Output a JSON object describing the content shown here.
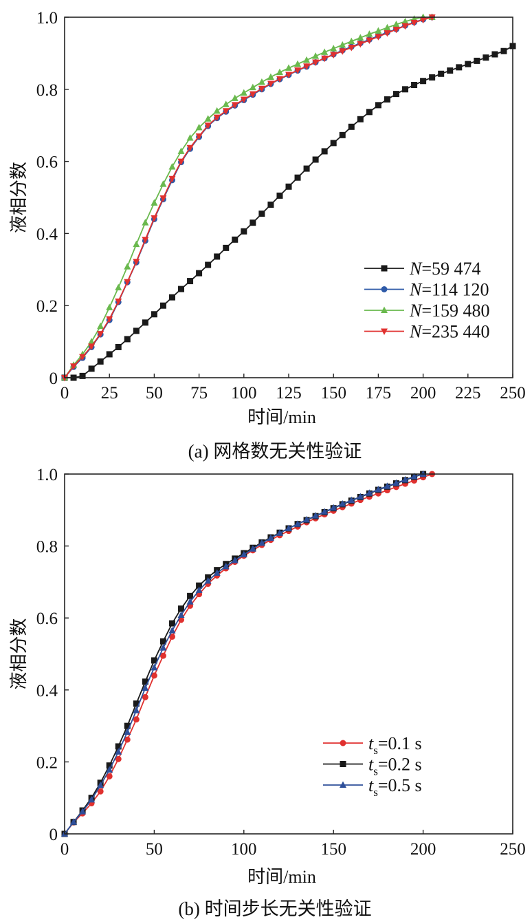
{
  "chart_data": [
    {
      "type": "line",
      "caption": "(a) 网格数无关性验证",
      "xlabel": "时间/min",
      "ylabel": "液相分数",
      "xlim": [
        0,
        250
      ],
      "ylim": [
        0,
        1.0
      ],
      "x_ticks": [
        "0",
        "25",
        "50",
        "75",
        "100",
        "125",
        "150",
        "175",
        "200",
        "225",
        "250"
      ],
      "y_ticks": [
        "0",
        "0.2",
        "0.4",
        "0.6",
        "0.8",
        "1.0"
      ],
      "grid": false,
      "legend_position": "bottom-right",
      "series": [
        {
          "name": "N=59 474",
          "legend_italic": "N",
          "legend_rest": "=59 474",
          "color": "#1a1a1a",
          "marker": "square",
          "x": [
            0,
            5,
            10,
            15,
            20,
            25,
            30,
            35,
            40,
            45,
            50,
            55,
            60,
            65,
            70,
            75,
            80,
            85,
            90,
            95,
            100,
            105,
            110,
            115,
            120,
            125,
            130,
            135,
            140,
            145,
            150,
            155,
            160,
            165,
            170,
            175,
            180,
            185,
            190,
            195,
            200,
            205,
            210,
            215,
            220,
            225,
            230,
            235,
            240,
            245,
            250
          ],
          "y": [
            0,
            0.0,
            0.005,
            0.025,
            0.045,
            0.065,
            0.085,
            0.107,
            0.13,
            0.153,
            0.176,
            0.2,
            0.223,
            0.246,
            0.268,
            0.29,
            0.313,
            0.336,
            0.36,
            0.383,
            0.406,
            0.43,
            0.455,
            0.48,
            0.505,
            0.53,
            0.555,
            0.58,
            0.605,
            0.628,
            0.651,
            0.673,
            0.696,
            0.717,
            0.737,
            0.756,
            0.772,
            0.787,
            0.8,
            0.812,
            0.823,
            0.833,
            0.843,
            0.852,
            0.861,
            0.87,
            0.879,
            0.888,
            0.897,
            0.906,
            0.92
          ]
        },
        {
          "name": "N=114 120",
          "legend_italic": "N",
          "legend_rest": "=114 120",
          "color": "#2e5aa8",
          "marker": "circle",
          "x": [
            0,
            5,
            10,
            15,
            20,
            25,
            30,
            35,
            40,
            45,
            50,
            55,
            60,
            65,
            70,
            75,
            80,
            85,
            90,
            95,
            100,
            105,
            110,
            115,
            120,
            125,
            130,
            135,
            140,
            145,
            150,
            155,
            160,
            165,
            170,
            175,
            180,
            185,
            190,
            195,
            200,
            205
          ],
          "y": [
            0,
            0.03,
            0.055,
            0.085,
            0.12,
            0.16,
            0.21,
            0.265,
            0.32,
            0.38,
            0.44,
            0.495,
            0.548,
            0.598,
            0.635,
            0.668,
            0.698,
            0.72,
            0.738,
            0.755,
            0.77,
            0.785,
            0.8,
            0.815,
            0.828,
            0.84,
            0.852,
            0.863,
            0.875,
            0.886,
            0.897,
            0.908,
            0.918,
            0.928,
            0.938,
            0.948,
            0.958,
            0.967,
            0.977,
            0.986,
            0.994,
            1.0
          ]
        },
        {
          "name": "N=159 480",
          "legend_italic": "N",
          "legend_rest": "=159 480",
          "color": "#6ab94e",
          "marker": "triangle-up",
          "x": [
            0,
            5,
            10,
            15,
            20,
            25,
            30,
            35,
            40,
            45,
            50,
            55,
            60,
            65,
            70,
            75,
            80,
            85,
            90,
            95,
            100,
            105,
            110,
            115,
            120,
            125,
            130,
            135,
            140,
            145,
            150,
            155,
            160,
            165,
            170,
            175,
            180,
            185,
            190,
            195,
            200,
            205
          ],
          "y": [
            0,
            0.035,
            0.065,
            0.1,
            0.143,
            0.195,
            0.25,
            0.308,
            0.37,
            0.43,
            0.485,
            0.537,
            0.585,
            0.628,
            0.665,
            0.694,
            0.718,
            0.74,
            0.758,
            0.775,
            0.79,
            0.805,
            0.82,
            0.834,
            0.847,
            0.859,
            0.87,
            0.881,
            0.892,
            0.903,
            0.913,
            0.923,
            0.933,
            0.943,
            0.953,
            0.962,
            0.971,
            0.98,
            0.988,
            0.995,
            1.0,
            1.0
          ]
        },
        {
          "name": "N=235 440",
          "legend_italic": "N",
          "legend_rest": "=235 440",
          "color": "#e0312f",
          "marker": "triangle-down",
          "x": [
            0,
            5,
            10,
            15,
            20,
            25,
            30,
            35,
            40,
            45,
            50,
            55,
            60,
            65,
            70,
            75,
            80,
            85,
            90,
            95,
            100,
            105,
            110,
            115,
            120,
            125,
            130,
            135,
            140,
            145,
            150,
            155,
            160,
            165,
            170,
            175,
            180,
            185,
            190,
            195,
            200,
            205
          ],
          "y": [
            0,
            0.032,
            0.058,
            0.087,
            0.122,
            0.163,
            0.212,
            0.266,
            0.322,
            0.383,
            0.443,
            0.498,
            0.552,
            0.6,
            0.638,
            0.67,
            0.7,
            0.722,
            0.74,
            0.757,
            0.772,
            0.787,
            0.802,
            0.816,
            0.829,
            0.841,
            0.853,
            0.864,
            0.875,
            0.886,
            0.896,
            0.906,
            0.916,
            0.926,
            0.936,
            0.946,
            0.956,
            0.966,
            0.976,
            0.985,
            0.993,
            1.0
          ]
        }
      ]
    },
    {
      "type": "line",
      "caption": "(b) 时间步长无关性验证",
      "xlabel": "时间/min",
      "ylabel": "液相分数",
      "xlim": [
        0,
        250
      ],
      "ylim": [
        0,
        1.0
      ],
      "x_ticks": [
        "0",
        "50",
        "100",
        "150",
        "200",
        "250"
      ],
      "y_ticks": [
        "0",
        "0.2",
        "0.4",
        "0.6",
        "0.8",
        "1.0"
      ],
      "grid": false,
      "legend_position": "bottom-right",
      "series": [
        {
          "name": "ts=0.1 s",
          "legend_italic": "t",
          "legend_sub": "s",
          "legend_rest": "=0.1 s",
          "color": "#e0312f",
          "marker": "circle",
          "x": [
            0,
            5,
            10,
            15,
            20,
            25,
            30,
            35,
            40,
            45,
            50,
            55,
            60,
            65,
            70,
            75,
            80,
            85,
            90,
            95,
            100,
            105,
            110,
            115,
            120,
            125,
            130,
            135,
            140,
            145,
            150,
            155,
            160,
            165,
            170,
            175,
            180,
            185,
            190,
            195,
            200,
            205
          ],
          "y": [
            0,
            0.032,
            0.057,
            0.085,
            0.118,
            0.16,
            0.208,
            0.262,
            0.318,
            0.38,
            0.44,
            0.495,
            0.548,
            0.595,
            0.634,
            0.666,
            0.695,
            0.718,
            0.738,
            0.756,
            0.773,
            0.788,
            0.803,
            0.817,
            0.83,
            0.842,
            0.854,
            0.866,
            0.877,
            0.888,
            0.898,
            0.908,
            0.918,
            0.928,
            0.937,
            0.946,
            0.955,
            0.964,
            0.973,
            0.982,
            0.991,
            1.0
          ]
        },
        {
          "name": "ts=0.2 s",
          "legend_italic": "t",
          "legend_sub": "s",
          "legend_rest": "=0.2 s",
          "color": "#1a1a1a",
          "marker": "square",
          "x": [
            0,
            5,
            10,
            15,
            20,
            25,
            30,
            35,
            40,
            45,
            50,
            55,
            60,
            65,
            70,
            75,
            80,
            85,
            90,
            95,
            100,
            105,
            110,
            115,
            120,
            125,
            130,
            135,
            140,
            145,
            150,
            155,
            160,
            165,
            170,
            175,
            180,
            185,
            190,
            195,
            200
          ],
          "y": [
            0,
            0.033,
            0.065,
            0.1,
            0.142,
            0.19,
            0.243,
            0.3,
            0.362,
            0.423,
            0.482,
            0.535,
            0.585,
            0.626,
            0.661,
            0.69,
            0.713,
            0.733,
            0.75,
            0.765,
            0.78,
            0.795,
            0.81,
            0.824,
            0.837,
            0.849,
            0.861,
            0.872,
            0.883,
            0.894,
            0.905,
            0.916,
            0.926,
            0.936,
            0.946,
            0.956,
            0.965,
            0.974,
            0.983,
            0.992,
            1.0
          ]
        },
        {
          "name": "ts=0.5 s",
          "legend_italic": "t",
          "legend_sub": "s",
          "legend_rest": "=0.5 s",
          "color": "#2e4f9a",
          "marker": "triangle-up",
          "x": [
            0,
            5,
            10,
            15,
            20,
            25,
            30,
            35,
            40,
            45,
            50,
            55,
            60,
            65,
            70,
            75,
            80,
            85,
            90,
            95,
            100,
            105,
            110,
            115,
            120,
            125,
            130,
            135,
            140,
            145,
            150,
            155,
            160,
            165,
            170,
            175,
            180,
            185,
            190,
            195,
            200
          ],
          "y": [
            0,
            0.033,
            0.062,
            0.095,
            0.135,
            0.178,
            0.228,
            0.283,
            0.343,
            0.405,
            0.462,
            0.517,
            0.565,
            0.608,
            0.645,
            0.677,
            0.703,
            0.725,
            0.743,
            0.76,
            0.776,
            0.792,
            0.808,
            0.822,
            0.836,
            0.849,
            0.861,
            0.873,
            0.884,
            0.895,
            0.906,
            0.917,
            0.927,
            0.937,
            0.947,
            0.957,
            0.966,
            0.975,
            0.984,
            0.993,
            1.0
          ]
        }
      ]
    }
  ]
}
